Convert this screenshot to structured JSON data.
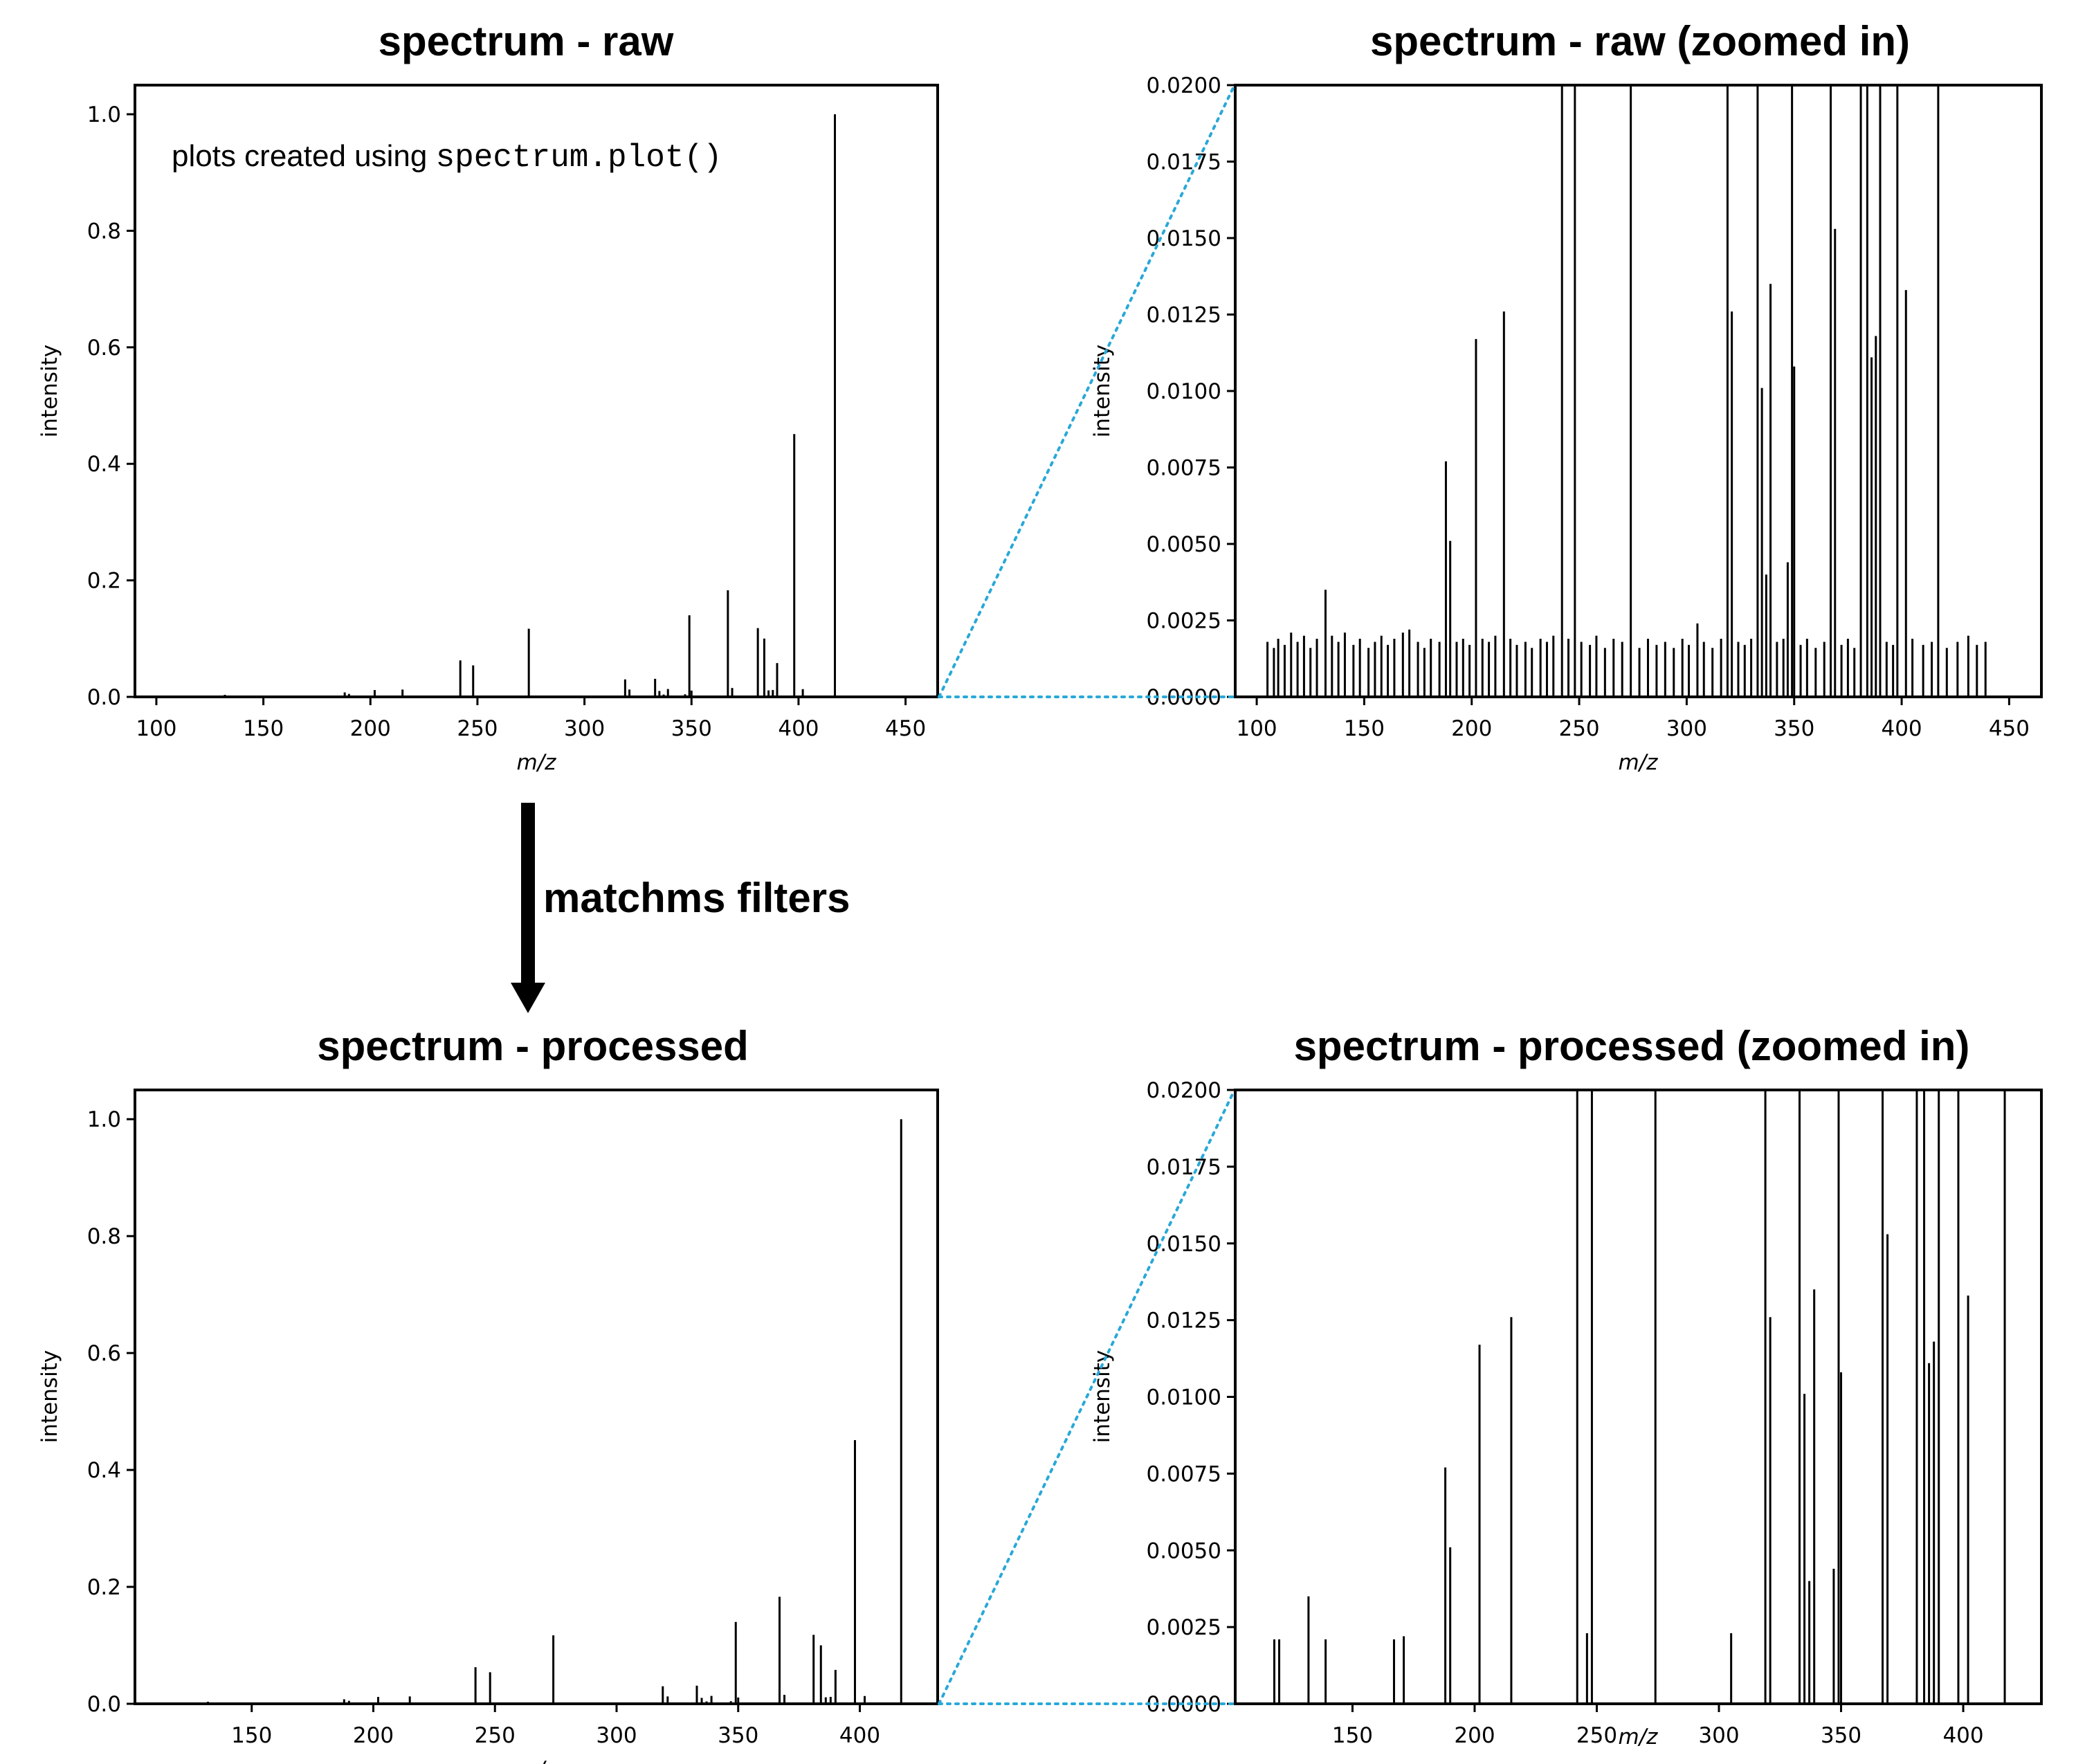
{
  "annotation": {
    "prefix": "plots created using ",
    "code": "spectrum.plot()"
  },
  "arrow_label": "matchms filters",
  "colors": {
    "bars": "#000000",
    "zoom_connector": "#29a8d8",
    "frame": "#000000"
  },
  "chart_data": [
    {
      "id": "raw",
      "type": "bar",
      "title": "spectrum - raw",
      "xlabel": "m/z",
      "ylabel": "intensity",
      "xlim": [
        90,
        465
      ],
      "ylim": [
        0,
        1.05
      ],
      "xticks": [
        100,
        150,
        200,
        250,
        300,
        350,
        400,
        450
      ],
      "yticks": [
        0.0,
        0.2,
        0.4,
        0.6,
        0.8,
        1.0
      ],
      "ytick_labels": [
        "0.0",
        "0.2",
        "0.4",
        "0.6",
        "0.8",
        "1.0"
      ],
      "grid": false,
      "legend": "none",
      "peaks": [
        [
          105,
          0.0018
        ],
        [
          108,
          0.0016
        ],
        [
          110,
          0.0019
        ],
        [
          113,
          0.0017
        ],
        [
          116,
          0.0021
        ],
        [
          119,
          0.0018
        ],
        [
          122,
          0.002
        ],
        [
          125,
          0.0016
        ],
        [
          128,
          0.0019
        ],
        [
          132,
          0.0035
        ],
        [
          135,
          0.002
        ],
        [
          138,
          0.0018
        ],
        [
          141,
          0.0021
        ],
        [
          145,
          0.0017
        ],
        [
          148,
          0.0019
        ],
        [
          152,
          0.0016
        ],
        [
          155,
          0.0018
        ],
        [
          158,
          0.002
        ],
        [
          161,
          0.0017
        ],
        [
          164,
          0.0019
        ],
        [
          168,
          0.0021
        ],
        [
          171,
          0.0022
        ],
        [
          175,
          0.0018
        ],
        [
          178,
          0.0016
        ],
        [
          181,
          0.0019
        ],
        [
          185,
          0.0018
        ],
        [
          188,
          0.0077
        ],
        [
          190,
          0.0051
        ],
        [
          193,
          0.0018
        ],
        [
          196,
          0.0019
        ],
        [
          199,
          0.0017
        ],
        [
          202,
          0.0117
        ],
        [
          205,
          0.0019
        ],
        [
          208,
          0.0018
        ],
        [
          211,
          0.002
        ],
        [
          215,
          0.0126
        ],
        [
          218,
          0.0019
        ],
        [
          221,
          0.0017
        ],
        [
          225,
          0.0018
        ],
        [
          228,
          0.0016
        ],
        [
          232,
          0.0019
        ],
        [
          235,
          0.0018
        ],
        [
          238,
          0.002
        ],
        [
          242,
          0.0626
        ],
        [
          245,
          0.0019
        ],
        [
          248,
          0.054
        ],
        [
          251,
          0.0018
        ],
        [
          255,
          0.0017
        ],
        [
          258,
          0.002
        ],
        [
          262,
          0.0016
        ],
        [
          266,
          0.0019
        ],
        [
          270,
          0.0018
        ],
        [
          274,
          0.117
        ],
        [
          278,
          0.0016
        ],
        [
          282,
          0.0019
        ],
        [
          286,
          0.0017
        ],
        [
          290,
          0.0018
        ],
        [
          294,
          0.0016
        ],
        [
          298,
          0.0019
        ],
        [
          301,
          0.0017
        ],
        [
          305,
          0.0024
        ],
        [
          308,
          0.0018
        ],
        [
          312,
          0.0016
        ],
        [
          316,
          0.0019
        ],
        [
          319,
          0.03
        ],
        [
          321,
          0.0126
        ],
        [
          324,
          0.0018
        ],
        [
          327,
          0.0017
        ],
        [
          330,
          0.0019
        ],
        [
          333,
          0.031
        ],
        [
          335,
          0.0101
        ],
        [
          337,
          0.004
        ],
        [
          339,
          0.0135
        ],
        [
          342,
          0.0018
        ],
        [
          345,
          0.0019
        ],
        [
          347,
          0.0044
        ],
        [
          349,
          0.14
        ],
        [
          350,
          0.0108
        ],
        [
          353,
          0.0017
        ],
        [
          356,
          0.0019
        ],
        [
          360,
          0.0016
        ],
        [
          364,
          0.0018
        ],
        [
          367,
          0.183
        ],
        [
          369,
          0.0153
        ],
        [
          372,
          0.0017
        ],
        [
          375,
          0.0019
        ],
        [
          378,
          0.0016
        ],
        [
          381,
          0.118
        ],
        [
          384,
          0.1
        ],
        [
          386,
          0.0111
        ],
        [
          388,
          0.0118
        ],
        [
          390,
          0.058
        ],
        [
          393,
          0.0018
        ],
        [
          396,
          0.0017
        ],
        [
          398,
          0.451
        ],
        [
          402,
          0.0133
        ],
        [
          405,
          0.0019
        ],
        [
          410,
          0.0017
        ],
        [
          414,
          0.0018
        ],
        [
          417,
          1.0
        ],
        [
          421,
          0.0016
        ],
        [
          426,
          0.0018
        ],
        [
          431,
          0.002
        ],
        [
          435,
          0.0017
        ],
        [
          439,
          0.0018
        ]
      ]
    },
    {
      "id": "raw-zoom",
      "type": "bar",
      "title": "spectrum - raw (zoomed in)",
      "xlabel": "m/z",
      "ylabel": "intensity",
      "xlim": [
        90,
        465
      ],
      "ylim": [
        0,
        0.02
      ],
      "xticks": [
        100,
        150,
        200,
        250,
        300,
        350,
        400,
        450
      ],
      "yticks": [
        0.0,
        0.0025,
        0.005,
        0.0075,
        0.01,
        0.0125,
        0.015,
        0.0175,
        0.02
      ],
      "ytick_labels": [
        "0.0000",
        "0.0025",
        "0.0050",
        "0.0075",
        "0.0100",
        "0.0125",
        "0.0150",
        "0.0175",
        "0.0200"
      ],
      "grid": false,
      "legend": "none",
      "peaks_from": "raw"
    },
    {
      "id": "processed",
      "type": "bar",
      "title": "spectrum - processed",
      "xlabel": "m/z",
      "ylabel": "intensity",
      "xlim": [
        102,
        432
      ],
      "ylim": [
        0,
        1.05
      ],
      "xticks": [
        150,
        200,
        250,
        300,
        350,
        400
      ],
      "yticks": [
        0.0,
        0.2,
        0.4,
        0.6,
        0.8,
        1.0
      ],
      "ytick_labels": [
        "0.0",
        "0.2",
        "0.4",
        "0.6",
        "0.8",
        "1.0"
      ],
      "grid": false,
      "legend": "none",
      "peaks": [
        [
          118,
          0.0021
        ],
        [
          120,
          0.0021
        ],
        [
          132,
          0.0035
        ],
        [
          139,
          0.0021
        ],
        [
          167,
          0.0021
        ],
        [
          171,
          0.0022
        ],
        [
          188,
          0.0077
        ],
        [
          190,
          0.0051
        ],
        [
          202,
          0.0117
        ],
        [
          215,
          0.0126
        ],
        [
          242,
          0.0626
        ],
        [
          246,
          0.0023
        ],
        [
          248,
          0.054
        ],
        [
          274,
          0.117
        ],
        [
          305,
          0.0023
        ],
        [
          319,
          0.03
        ],
        [
          321,
          0.0126
        ],
        [
          333,
          0.031
        ],
        [
          335,
          0.0101
        ],
        [
          337,
          0.004
        ],
        [
          339,
          0.0135
        ],
        [
          347,
          0.0044
        ],
        [
          349,
          0.14
        ],
        [
          350,
          0.0108
        ],
        [
          367,
          0.183
        ],
        [
          369,
          0.0153
        ],
        [
          381,
          0.118
        ],
        [
          384,
          0.1
        ],
        [
          386,
          0.0111
        ],
        [
          388,
          0.0118
        ],
        [
          390,
          0.058
        ],
        [
          398,
          0.451
        ],
        [
          402,
          0.0133
        ],
        [
          417,
          1.0
        ]
      ]
    },
    {
      "id": "processed-zoom",
      "type": "bar",
      "title": "spectrum - processed (zoomed in)",
      "xlabel": "m/z",
      "ylabel": "intensity",
      "xlim": [
        102,
        432
      ],
      "ylim": [
        0,
        0.02
      ],
      "xticks": [
        150,
        200,
        250,
        300,
        350,
        400
      ],
      "yticks": [
        0.0,
        0.0025,
        0.005,
        0.0075,
        0.01,
        0.0125,
        0.015,
        0.0175,
        0.02
      ],
      "ytick_labels": [
        "0.0000",
        "0.0025",
        "0.0050",
        "0.0075",
        "0.0100",
        "0.0125",
        "0.0150",
        "0.0175",
        "0.0200"
      ],
      "grid": false,
      "legend": "none",
      "peaks_from": "processed"
    }
  ]
}
